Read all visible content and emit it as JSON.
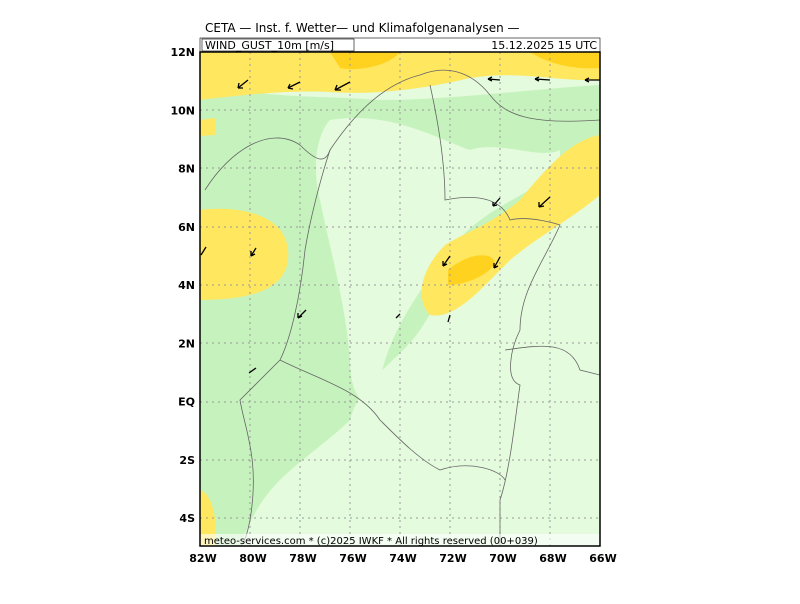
{
  "header": {
    "title": "CETA — Inst. f. Wetter— und Klimafolgenanalysen —",
    "parameter": "WIND_GUST_10m [m/s]",
    "valid_time": "15.12.2025 15 UTC"
  },
  "map": {
    "lat_labels": [
      "12N",
      "10N",
      "8N",
      "6N",
      "4N",
      "2N",
      "EQ",
      "2S",
      "4S"
    ],
    "lon_labels": [
      "82W",
      "80W",
      "78W",
      "76W",
      "74W",
      "72W",
      "70W",
      "68W",
      "66W"
    ]
  },
  "footer": "meteo-services.com * (c)2025 IWKF * All rights reserved (00+039)"
}
